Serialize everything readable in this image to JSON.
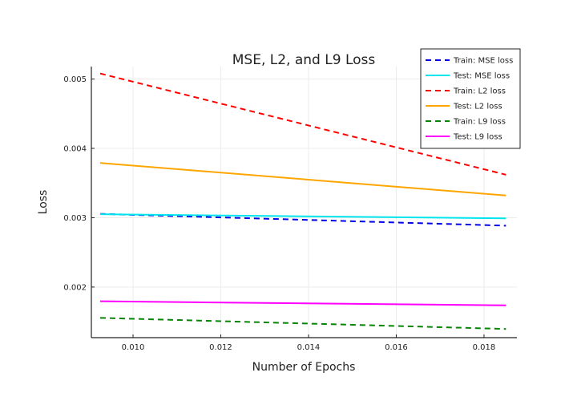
{
  "chart_data": {
    "type": "line",
    "title": "MSE, L2, and L9 Loss",
    "xlabel": "Number of Epochs",
    "ylabel": "Loss",
    "xlim": [
      0.00905,
      0.01875
    ],
    "ylim": [
      0.00127,
      0.00518
    ],
    "xticks": [
      0.01,
      0.012,
      0.014,
      0.016,
      0.018
    ],
    "xtick_labels": [
      "0.010",
      "0.012",
      "0.014",
      "0.016",
      "0.018"
    ],
    "yticks": [
      0.002,
      0.003,
      0.004,
      0.005
    ],
    "ytick_labels": [
      "0.002",
      "0.003",
      "0.004",
      "0.005"
    ],
    "grid": true,
    "legend_position": "top-right",
    "series": [
      {
        "name": "Train: MSE loss",
        "color": "#0000ee",
        "dash": "dashed",
        "x": [
          0.00925,
          0.0185
        ],
        "y": [
          0.003055,
          0.002885
        ]
      },
      {
        "name": "Test: MSE loss",
        "color": "#00e5ee",
        "dash": "solid",
        "x": [
          0.00925,
          0.0185
        ],
        "y": [
          0.00305,
          0.00299
        ]
      },
      {
        "name": "Train: L2 loss",
        "color": "#ff0000",
        "dash": "dashed",
        "x": [
          0.00925,
          0.0185
        ],
        "y": [
          0.00508,
          0.00362
        ]
      },
      {
        "name": "Test: L2 loss",
        "color": "#ffa500",
        "dash": "solid",
        "x": [
          0.00925,
          0.0185
        ],
        "y": [
          0.00379,
          0.00332
        ]
      },
      {
        "name": "Train: L9 loss",
        "color": "#008800",
        "dash": "dashed",
        "x": [
          0.00925,
          0.0185
        ],
        "y": [
          0.001555,
          0.001395
        ]
      },
      {
        "name": "Test: L9 loss",
        "color": "#ff00ff",
        "dash": "solid",
        "x": [
          0.00925,
          0.0185
        ],
        "y": [
          0.001795,
          0.001735
        ]
      }
    ]
  }
}
